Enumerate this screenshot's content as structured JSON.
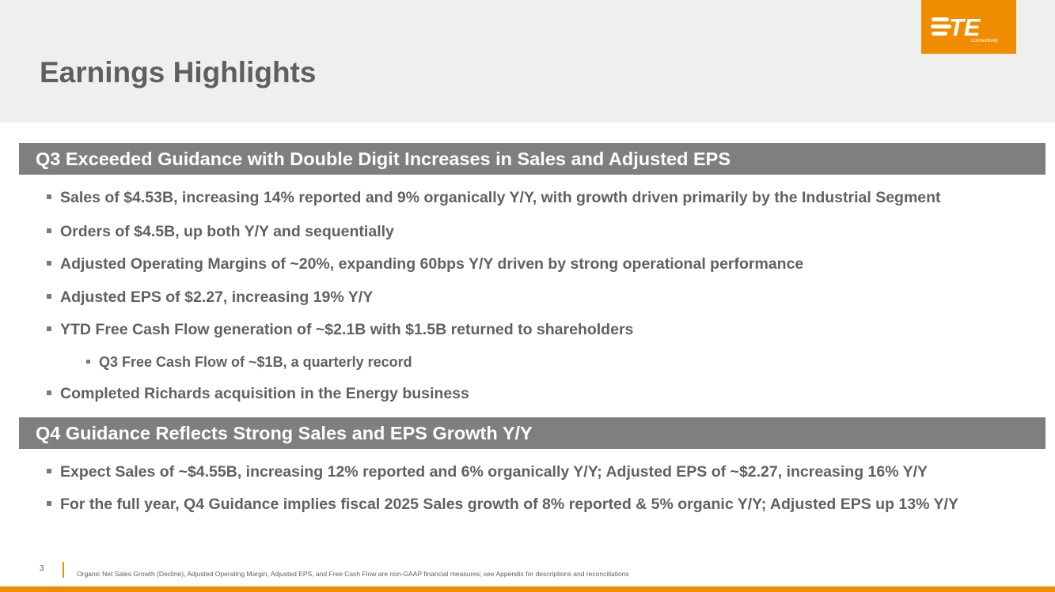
{
  "header": {
    "title": "Earnings Highlights",
    "logo": {
      "brand_mark": "TE",
      "tagline": "connectivity",
      "background_color": "#f08c00"
    }
  },
  "sections": [
    {
      "heading": "Q3 Exceeded Guidance with Double Digit Increases in Sales and Adjusted EPS",
      "bullets": [
        {
          "text": "Sales of $4.53B, increasing 14% reported and 9% organically Y/Y, with growth driven primarily by the Industrial Segment",
          "level": 1
        },
        {
          "text": "Orders of $4.5B, up both Y/Y and sequentially",
          "level": 1
        },
        {
          "text": "Adjusted Operating Margins of ~20%, expanding 60bps Y/Y driven by strong operational performance",
          "level": 1
        },
        {
          "text": "Adjusted EPS of $2.27, increasing 19% Y/Y",
          "level": 1
        },
        {
          "text": "YTD Free Cash Flow generation of ~$2.1B with $1.5B returned to shareholders",
          "level": 1
        },
        {
          "text": "Q3 Free Cash Flow of ~$1B, a quarterly record",
          "level": 2
        },
        {
          "text": "Completed Richards acquisition in the Energy business",
          "level": 1
        }
      ]
    },
    {
      "heading": "Q4 Guidance Reflects Strong Sales and EPS Growth Y/Y",
      "bullets": [
        {
          "text": "Expect Sales of ~$4.55B, increasing 12% reported and 6% organically Y/Y; Adjusted EPS of ~$2.27, increasing 16% Y/Y",
          "level": 1
        },
        {
          "text": "For the full year, Q4 Guidance implies fiscal 2025 Sales growth of 8% reported & 5% organic Y/Y; Adjusted EPS up 13% Y/Y",
          "level": 1
        }
      ]
    }
  ],
  "footer": {
    "page_number": "3",
    "footnote": "Organic Net Sales Growth (Decline), Adjusted Operating Margin, Adjusted EPS, and Free Cash Flow are non-GAAP financial measures; see Appendix for descriptions and reconciliations"
  },
  "colors": {
    "accent": "#f08c00",
    "section_bar": "#7f7f7f",
    "header_background": "#efefef",
    "body_text": "#616161"
  }
}
